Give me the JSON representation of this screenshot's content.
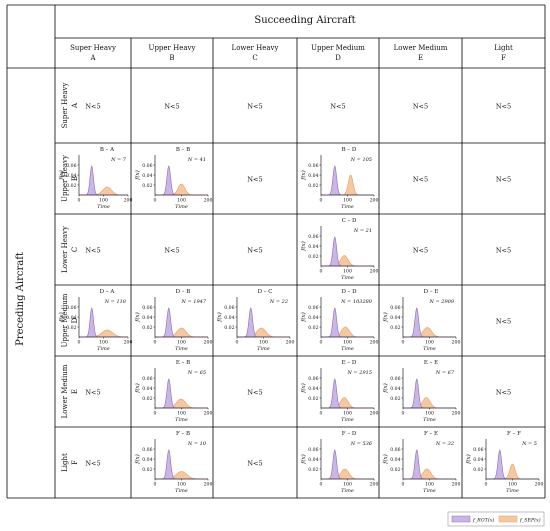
{
  "header": {
    "column_group_title": "Succeeding Aircraft",
    "row_group_title": "Preceding Aircraft"
  },
  "columns": [
    {
      "name": "Super Heavy",
      "code": "A"
    },
    {
      "name": "Upper Heavy",
      "code": "B"
    },
    {
      "name": "Lower Heavy",
      "code": "C"
    },
    {
      "name": "Upper Medium",
      "code": "D"
    },
    {
      "name": "Lower Medium",
      "code": "E"
    },
    {
      "name": "Light",
      "code": "F"
    }
  ],
  "rows": [
    {
      "name": "Super Heavy",
      "code": "A"
    },
    {
      "name": "Upper Heavy",
      "code": "B"
    },
    {
      "name": "Lower Heavy",
      "code": "C"
    },
    {
      "name": "Upper Medium",
      "code": "D"
    },
    {
      "name": "Lower Medium",
      "code": "E"
    },
    {
      "name": "Light",
      "code": "F"
    }
  ],
  "empty_cell_text": "N<5",
  "chart_data": {
    "type": "area",
    "xlabel": "Time",
    "ylabel": "f(x)",
    "xlim": [
      0,
      200
    ],
    "ylim": [
      0,
      0.08
    ],
    "xticks": [
      "0",
      "100",
      "200"
    ],
    "yticks": [
      "0.02",
      "0.04",
      "0.06"
    ],
    "legend_placement": "bottom-right",
    "legend": [
      {
        "name": "f_ROT(x)",
        "color": "#c9b6e4"
      },
      {
        "name": "f_SEP(x)",
        "color": "#f6c8a0"
      }
    ],
    "cells": [
      {
        "row": 1,
        "col": 0,
        "title": "B – A",
        "n_label": "N = 7",
        "rot": {
          "mean": 52,
          "sd": 7,
          "peak": 0.058
        },
        "sep": {
          "mean": 115,
          "sd": 18,
          "peak": 0.016
        }
      },
      {
        "row": 1,
        "col": 1,
        "title": "B – B",
        "n_label": "N = 41",
        "rot": {
          "mean": 52,
          "sd": 7,
          "peak": 0.058
        },
        "sep": {
          "mean": 100,
          "sd": 13,
          "peak": 0.022
        }
      },
      {
        "row": 1,
        "col": 3,
        "title": "B – D",
        "n_label": "N = 105",
        "rot": {
          "mean": 52,
          "sd": 7,
          "peak": 0.058
        },
        "sep": {
          "mean": 112,
          "sd": 9,
          "peak": 0.04
        }
      },
      {
        "row": 2,
        "col": 3,
        "title": "C – D",
        "n_label": "N = 21",
        "rot": {
          "mean": 52,
          "sd": 7,
          "peak": 0.058
        },
        "sep": {
          "mean": 88,
          "sd": 14,
          "peak": 0.021
        }
      },
      {
        "row": 3,
        "col": 0,
        "title": "D – A",
        "n_label": "N = 118",
        "rot": {
          "mean": 52,
          "sd": 7,
          "peak": 0.058
        },
        "sep": {
          "mean": 115,
          "sd": 22,
          "peak": 0.014
        }
      },
      {
        "row": 3,
        "col": 1,
        "title": "D – B",
        "n_label": "N = 1947",
        "rot": {
          "mean": 52,
          "sd": 7,
          "peak": 0.058
        },
        "sep": {
          "mean": 100,
          "sd": 17,
          "peak": 0.018
        }
      },
      {
        "row": 3,
        "col": 2,
        "title": "D – C",
        "n_label": "N = 22",
        "rot": {
          "mean": 52,
          "sd": 7,
          "peak": 0.058
        },
        "sep": {
          "mean": 92,
          "sd": 17,
          "peak": 0.018
        }
      },
      {
        "row": 3,
        "col": 3,
        "title": "D – D",
        "n_label": "N = 103280",
        "rot": {
          "mean": 52,
          "sd": 7,
          "peak": 0.058
        },
        "sep": {
          "mean": 92,
          "sd": 15,
          "peak": 0.02
        }
      },
      {
        "row": 3,
        "col": 4,
        "title": "D – E",
        "n_label": "N = 2909",
        "rot": {
          "mean": 52,
          "sd": 7,
          "peak": 0.058
        },
        "sep": {
          "mean": 92,
          "sd": 16,
          "peak": 0.019
        }
      },
      {
        "row": 4,
        "col": 1,
        "title": "E – B",
        "n_label": "N = 65",
        "rot": {
          "mean": 52,
          "sd": 7,
          "peak": 0.058
        },
        "sep": {
          "mean": 98,
          "sd": 17,
          "peak": 0.018
        }
      },
      {
        "row": 4,
        "col": 3,
        "title": "E – D",
        "n_label": "N = 2915",
        "rot": {
          "mean": 52,
          "sd": 7,
          "peak": 0.058
        },
        "sep": {
          "mean": 88,
          "sd": 14,
          "peak": 0.021
        }
      },
      {
        "row": 4,
        "col": 4,
        "title": "E – E",
        "n_label": "N = 67",
        "rot": {
          "mean": 52,
          "sd": 7,
          "peak": 0.058
        },
        "sep": {
          "mean": 88,
          "sd": 14,
          "peak": 0.021
        }
      },
      {
        "row": 5,
        "col": 1,
        "title": "F – B",
        "n_label": "N = 10",
        "rot": {
          "mean": 52,
          "sd": 7,
          "peak": 0.058
        },
        "sep": {
          "mean": 100,
          "sd": 20,
          "peak": 0.015
        }
      },
      {
        "row": 5,
        "col": 3,
        "title": "F – D",
        "n_label": "N = 536",
        "rot": {
          "mean": 52,
          "sd": 7,
          "peak": 0.058
        },
        "sep": {
          "mean": 90,
          "sd": 15,
          "peak": 0.02
        }
      },
      {
        "row": 5,
        "col": 4,
        "title": "F – E",
        "n_label": "N = 32",
        "rot": {
          "mean": 52,
          "sd": 7,
          "peak": 0.058
        },
        "sep": {
          "mean": 90,
          "sd": 15,
          "peak": 0.02
        }
      },
      {
        "row": 5,
        "col": 5,
        "title": "F – F",
        "n_label": "N = 5",
        "rot": {
          "mean": 52,
          "sd": 7,
          "peak": 0.058
        },
        "sep": {
          "mean": 100,
          "sd": 10,
          "peak": 0.03
        }
      }
    ]
  }
}
